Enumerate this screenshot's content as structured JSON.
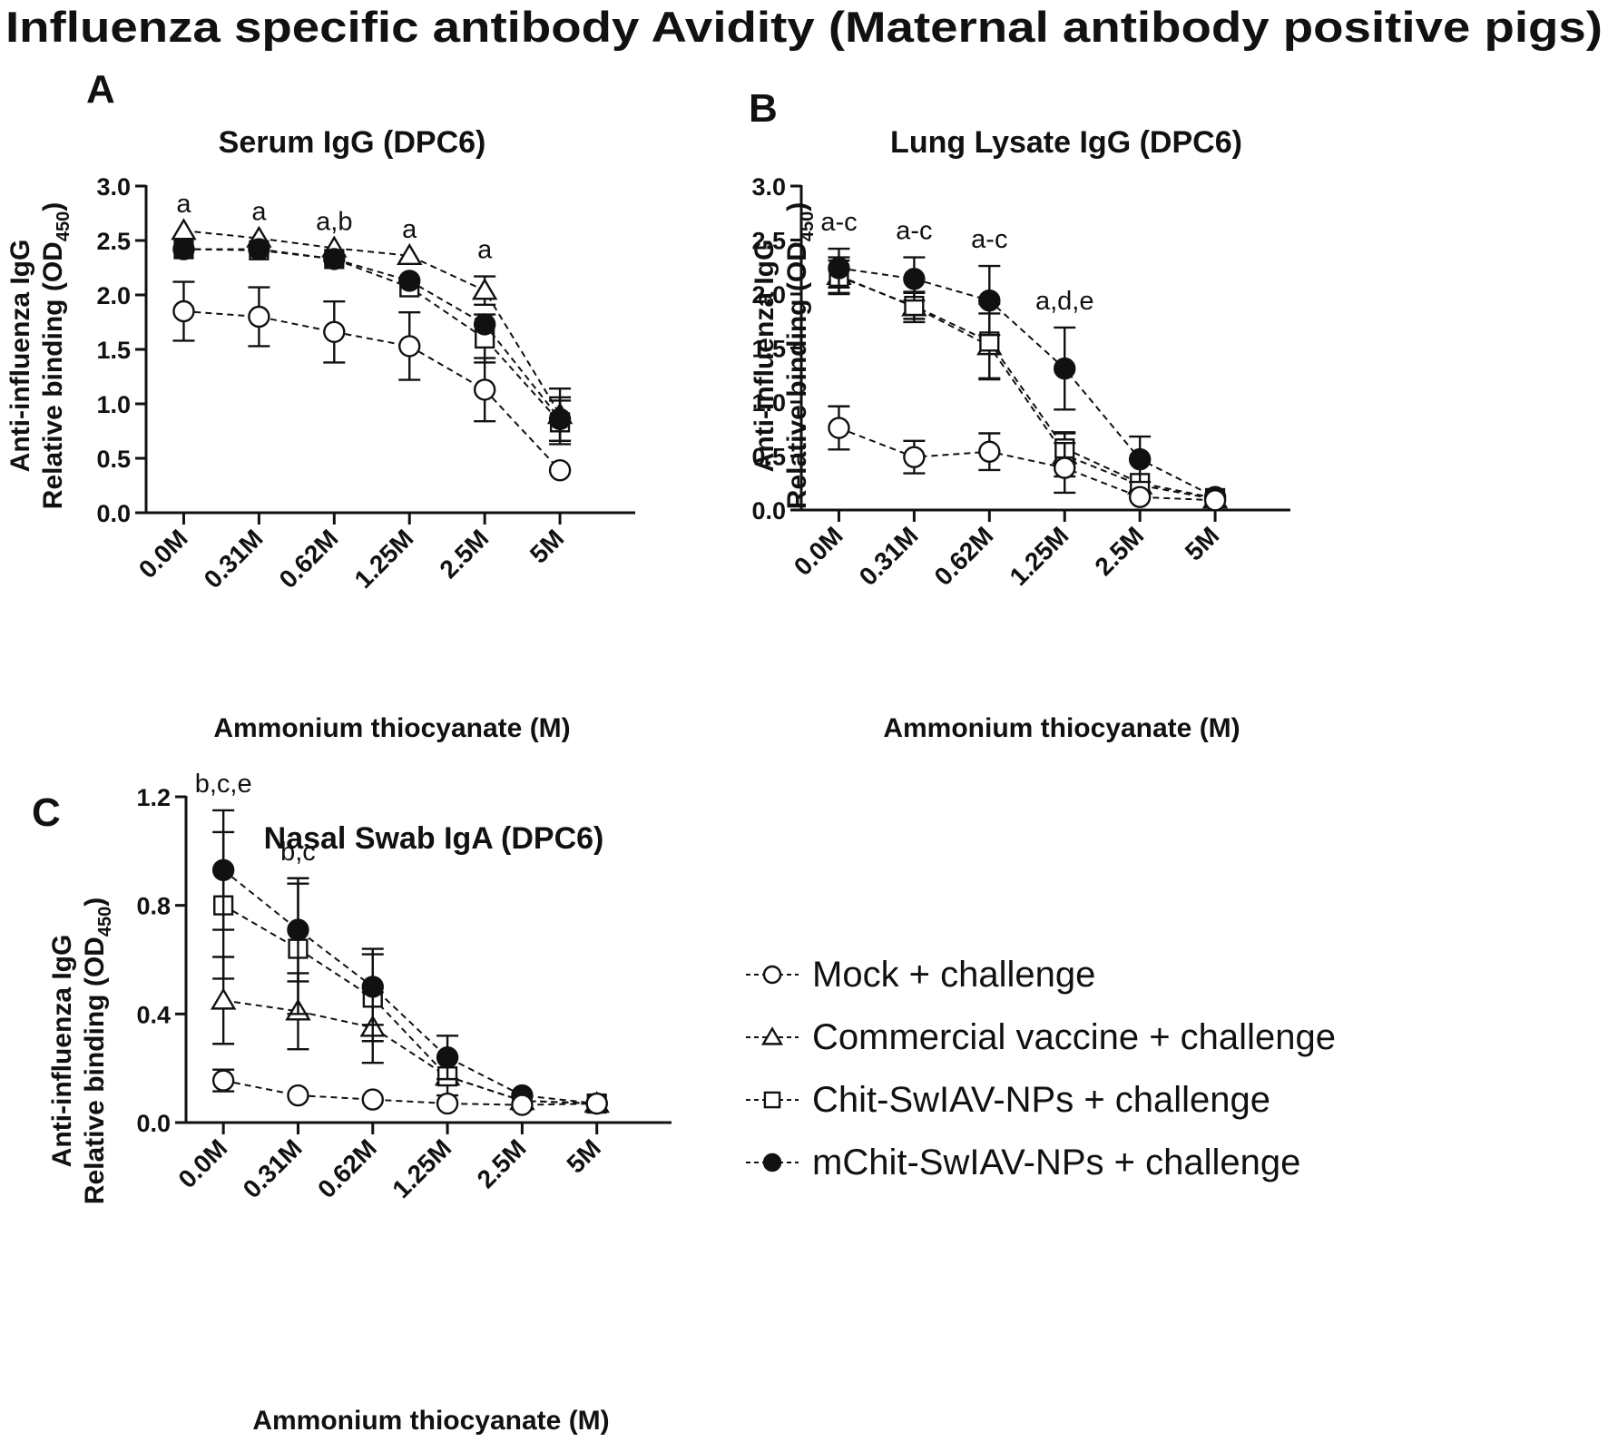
{
  "figure_title": "Influenza specific antibody Avidity (Maternal antibody positive pigs)",
  "colors": {
    "ink": "#111111",
    "open_fill": "#ffffff",
    "filled": "#111111",
    "background": "#ffffff"
  },
  "legend": [
    {
      "label": "Mock + challenge",
      "marker": "circle-open"
    },
    {
      "label": "Commercial vaccine + challenge",
      "marker": "triangle-open"
    },
    {
      "label": "Chit-SwIAV-NPs + challenge",
      "marker": "square-open"
    },
    {
      "label": "mChit-SwIAV-NPs + challenge",
      "marker": "circle-filled"
    }
  ],
  "chart_data": [
    {
      "panel": "A",
      "type": "line",
      "title": "Serum IgG (DPC6)",
      "ylabel_line1": "Anti-influenza IgG",
      "ylabel_line2": "Relative binding (OD",
      "ylabel_sub": "450",
      "ylabel_close": ")",
      "xlabel": "Ammonium thiocyanate (M)",
      "categories": [
        "0.0M",
        "0.31M",
        "0.62M",
        "1.25M",
        "2.5M",
        "5M"
      ],
      "ylim": [
        0,
        3.0
      ],
      "yticks": [
        "0.0",
        "0.5",
        "1.0",
        "1.5",
        "2.0",
        "2.5",
        "3.0"
      ],
      "series": [
        {
          "name": "Mock + challenge",
          "marker": "circle-open",
          "values": [
            1.85,
            1.8,
            1.66,
            1.53,
            1.13,
            0.39
          ],
          "errors": [
            0.27,
            0.27,
            0.28,
            0.31,
            0.29,
            0.0
          ]
        },
        {
          "name": "Commercial vaccine + challenge",
          "marker": "triangle-open",
          "values": [
            2.59,
            2.52,
            2.43,
            2.36,
            2.04,
            0.9
          ],
          "errors": [
            0.0,
            0.0,
            0.0,
            0.0,
            0.13,
            0.24
          ]
        },
        {
          "name": "Chit-SwIAV-NPs + challenge",
          "marker": "square-open",
          "values": [
            2.42,
            2.41,
            2.33,
            2.07,
            1.6,
            0.83
          ],
          "errors": [
            0.0,
            0.0,
            0.0,
            0.0,
            0.22,
            0.2
          ]
        },
        {
          "name": "mChit-SwIAV-NPs + challenge",
          "marker": "circle-filled",
          "values": [
            2.42,
            2.42,
            2.33,
            2.13,
            1.73,
            0.86
          ],
          "errors": [
            0.0,
            0.0,
            0.0,
            0.0,
            0.0,
            0.2
          ]
        }
      ],
      "annotations": [
        {
          "category": "0.0M",
          "text": "a"
        },
        {
          "category": "0.31M",
          "text": "a"
        },
        {
          "category": "0.62M",
          "text": "a,b"
        },
        {
          "category": "1.25M",
          "text": "a"
        },
        {
          "category": "2.5M",
          "text": "a"
        }
      ]
    },
    {
      "panel": "B",
      "type": "line",
      "title": "Lung Lysate IgG (DPC6)",
      "ylabel_line1": "Anti-influenza IgG",
      "ylabel_line2": "Relative binding (OD",
      "ylabel_sub": "450",
      "ylabel_close": ")",
      "xlabel": "Ammonium thiocyanate (M)",
      "categories": [
        "0.0M",
        "0.31M",
        "0.62M",
        "1.25M",
        "2.5M",
        "5M"
      ],
      "ylim": [
        0,
        3.0
      ],
      "yticks": [
        "0.0",
        "0.5",
        "1.0",
        "1.5",
        "2.0",
        "2.5",
        "3.0"
      ],
      "series": [
        {
          "name": "Mock + challenge",
          "marker": "circle-open",
          "values": [
            0.76,
            0.49,
            0.54,
            0.39,
            0.12,
            0.09
          ],
          "errors": [
            0.2,
            0.15,
            0.17,
            0.23,
            0.0,
            0.0
          ]
        },
        {
          "name": "Commercial vaccine + challenge",
          "marker": "triangle-open",
          "values": [
            2.17,
            1.88,
            1.52,
            0.51,
            0.23,
            0.1
          ],
          "errors": [
            0.17,
            0.14,
            0.3,
            0.2,
            0.0,
            0.0
          ]
        },
        {
          "name": "Chit-SwIAV-NPs + challenge",
          "marker": "square-open",
          "values": [
            2.16,
            1.89,
            1.56,
            0.57,
            0.25,
            0.11
          ],
          "errors": [
            0.15,
            0.12,
            0.35,
            0.15,
            0.0,
            0.0
          ]
        },
        {
          "name": "mChit-SwIAV-NPs + challenge",
          "marker": "circle-filled",
          "values": [
            2.24,
            2.14,
            1.94,
            1.31,
            0.47,
            0.12
          ],
          "errors": [
            0.18,
            0.2,
            0.32,
            0.38,
            0.21,
            0.0
          ]
        }
      ],
      "annotations": [
        {
          "category": "0.0M",
          "text": "a-c"
        },
        {
          "category": "0.31M",
          "text": "a-c"
        },
        {
          "category": "0.62M",
          "text": "a-c"
        },
        {
          "category": "1.25M",
          "text": "a,d,e"
        }
      ]
    },
    {
      "panel": "C",
      "type": "line",
      "title": "Nasal Swab IgA (DPC6)",
      "ylabel_line1": "Anti-influenza IgG",
      "ylabel_line2": "Relative binding (OD",
      "ylabel_sub": "450",
      "ylabel_close": ")",
      "xlabel": "Ammonium thiocyanate (M)",
      "categories": [
        "0.0M",
        "0.31M",
        "0.62M",
        "1.25M",
        "2.5M",
        "5M"
      ],
      "ylim": [
        0,
        1.2
      ],
      "yticks": [
        "0.0",
        "0.4",
        "0.8",
        "1.2"
      ],
      "series": [
        {
          "name": "Mock + challenge",
          "marker": "circle-open",
          "values": [
            0.155,
            0.1,
            0.085,
            0.07,
            0.065,
            0.07
          ],
          "errors": [
            0.04,
            0.0,
            0.0,
            0.0,
            0.0,
            0.0
          ]
        },
        {
          "name": "Commercial vaccine + challenge",
          "marker": "triangle-open",
          "values": [
            0.45,
            0.41,
            0.35,
            0.17,
            0.08,
            0.07
          ],
          "errors": [
            0.16,
            0.14,
            0.13,
            0.07,
            0.0,
            0.0
          ]
        },
        {
          "name": "Chit-SwIAV-NPs + challenge",
          "marker": "square-open",
          "values": [
            0.8,
            0.64,
            0.46,
            0.17,
            0.08,
            0.07
          ],
          "errors": [
            0.27,
            0.24,
            0.16,
            0.0,
            0.0,
            0.0
          ]
        },
        {
          "name": "mChit-SwIAV-NPs + challenge",
          "marker": "circle-filled",
          "values": [
            0.93,
            0.71,
            0.5,
            0.24,
            0.1,
            0.07
          ],
          "errors": [
            0.22,
            0.19,
            0.14,
            0.08,
            0.0,
            0.0
          ]
        }
      ],
      "annotations": [
        {
          "category": "0.0M",
          "text": "b,c,e"
        },
        {
          "category": "0.31M",
          "text": "b,c"
        }
      ]
    }
  ]
}
